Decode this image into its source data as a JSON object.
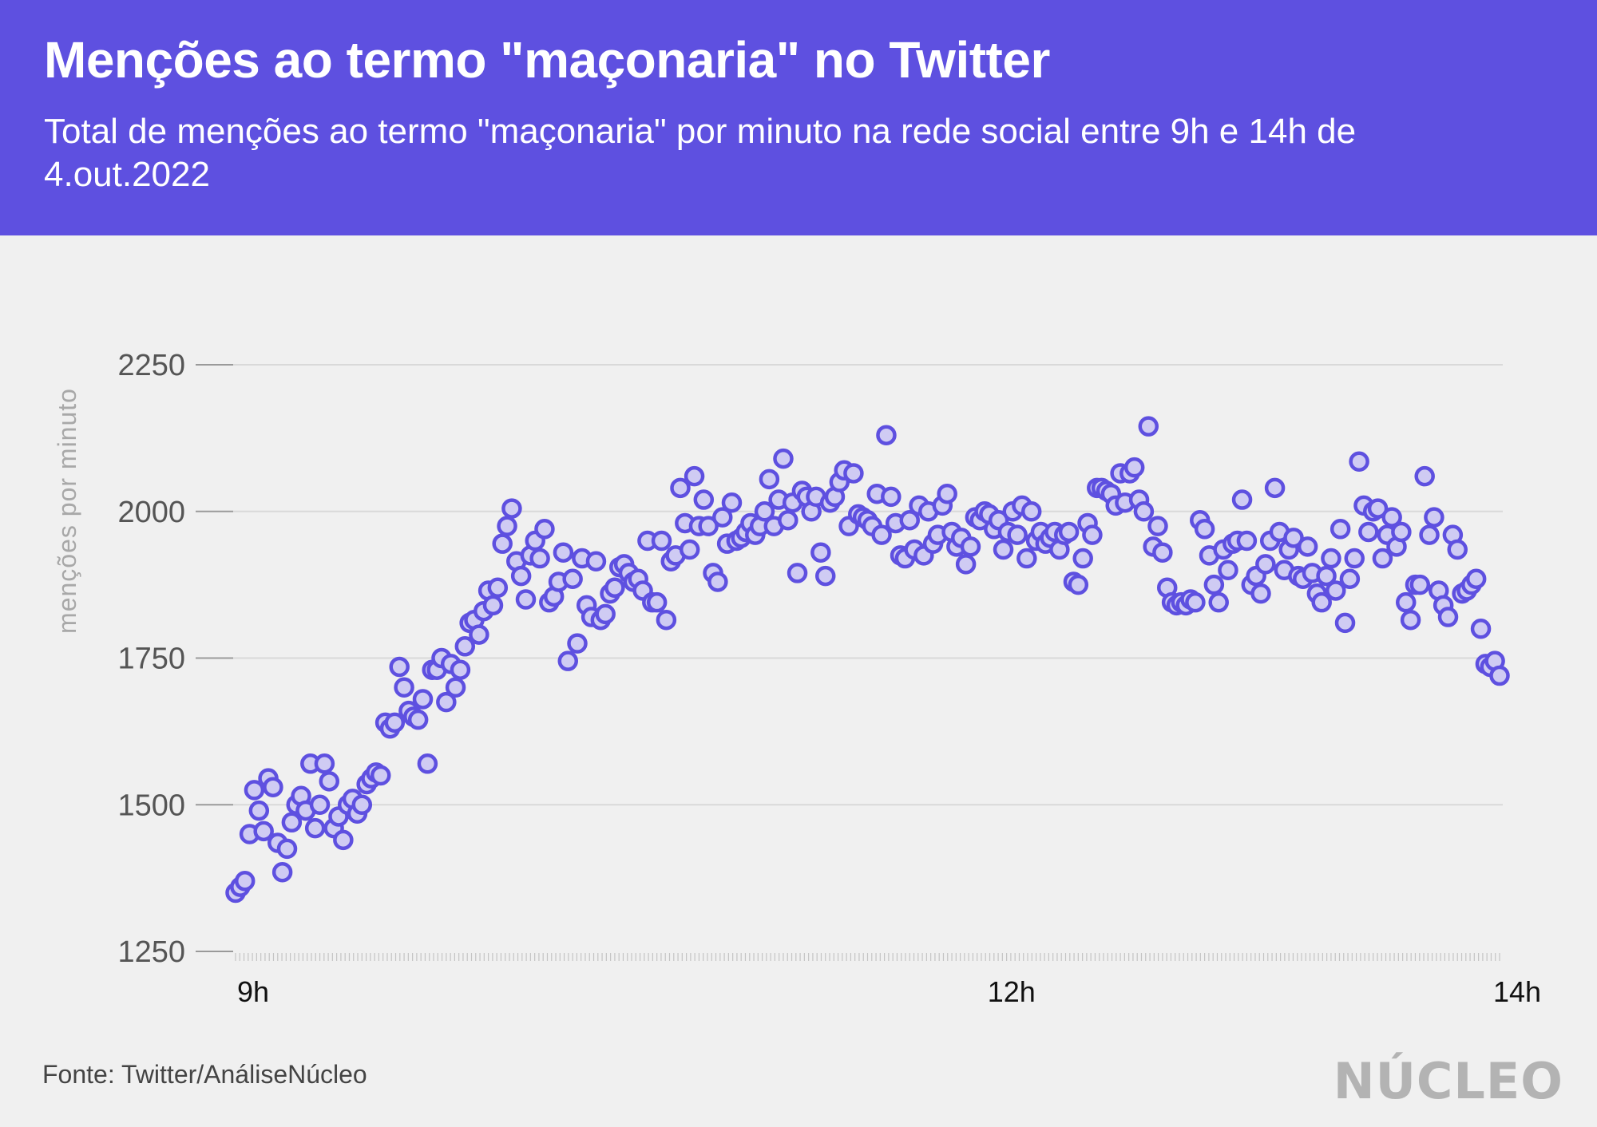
{
  "header": {
    "title": "Menções ao termo \"maçonaria\" no Twitter",
    "subtitle": "Total de menções ao termo \"maçonaria\" por minuto na rede social entre 9h e 14h de 4.out.2022"
  },
  "footer": {
    "source": "Fonte: Twitter/AnáliseNúcleo",
    "logo": "NÚCLEO"
  },
  "colors": {
    "header_bg": "#5e50e0",
    "point_stroke": "#5e50e0",
    "point_fill": "#cfcbf3",
    "background": "#f0f0f0"
  },
  "chart_data": {
    "type": "scatter",
    "title": "Menções ao termo \"maçonaria\" no Twitter",
    "ylabel": "menções por minuto",
    "xlabel": "",
    "ylim": [
      1250,
      2250
    ],
    "yticks": [
      1250,
      1500,
      1750,
      2000,
      2250
    ],
    "xticks": [
      {
        "label": "9h",
        "minute": 0
      },
      {
        "label": "12h",
        "minute": 180
      },
      {
        "label": "14h",
        "minute": 300
      }
    ],
    "grid": true,
    "series": [
      {
        "values": [
          1350,
          1360,
          1370,
          1450,
          1525,
          1490,
          1455,
          1545,
          1530,
          1435,
          1385,
          1425,
          1470,
          1500,
          1515,
          1490,
          1570,
          1460,
          1500,
          1570,
          1540,
          1460,
          1480,
          1440,
          1500,
          1510,
          1485,
          1500,
          1535,
          1545,
          1555,
          1550,
          1640,
          1630,
          1640,
          1735,
          1700,
          1660,
          1650,
          1645,
          1680,
          1570,
          1730,
          1730,
          1750,
          1675,
          1740,
          1700,
          1730,
          1770,
          1810,
          1815,
          1790,
          1830,
          1865,
          1840,
          1870,
          1945,
          1975,
          2005,
          1915,
          1890,
          1850,
          1925,
          1950,
          1920,
          1970,
          1845,
          1855,
          1880,
          1930,
          1745,
          1885,
          1775,
          1920,
          1840,
          1820,
          1915,
          1815,
          1825,
          1860,
          1870,
          1905,
          1910,
          1895,
          1880,
          1885,
          1865,
          1950,
          1845,
          1845,
          1950,
          1815,
          1915,
          1925,
          2040,
          1980,
          1935,
          2060,
          1975,
          2020,
          1975,
          1895,
          1880,
          1990,
          1945,
          2015,
          1950,
          1955,
          1965,
          1980,
          1960,
          1975,
          2000,
          2055,
          1975,
          2020,
          2090,
          1985,
          2015,
          1895,
          2035,
          2025,
          2000,
          2025,
          1930,
          1890,
          2015,
          2025,
          2050,
          2070,
          1975,
          2065,
          1995,
          1990,
          1985,
          1975,
          2030,
          1960,
          2130,
          2025,
          1980,
          1925,
          1920,
          1985,
          1935,
          2010,
          1925,
          2000,
          1945,
          1960,
          2010,
          2030,
          1965,
          1940,
          1955,
          1910,
          1940,
          1990,
          1985,
          2000,
          1995,
          1970,
          1985,
          1935,
          1965,
          2000,
          1960,
          2010,
          1920,
          2000,
          1950,
          1965,
          1945,
          1955,
          1965,
          1935,
          1960,
          1965,
          1880,
          1875,
          1920,
          1980,
          1960,
          2040,
          2040,
          2035,
          2030,
          2010,
          2065,
          2015,
          2065,
          2075,
          2020,
          2000,
          2145,
          1940,
          1975,
          1930,
          1870,
          1845,
          1840,
          1845,
          1840,
          1850,
          1845,
          1985,
          1970,
          1925,
          1875,
          1845,
          1935,
          1900,
          1945,
          1950,
          2020,
          1950,
          1875,
          1890,
          1860,
          1910,
          1950,
          2040,
          1965,
          1900,
          1935,
          1955,
          1890,
          1885,
          1940,
          1895,
          1860,
          1845,
          1890,
          1920,
          1865,
          1970,
          1810,
          1885,
          1920,
          2085,
          2010,
          1965,
          2000,
          2005,
          1920,
          1960,
          1990,
          1940,
          1965,
          1845,
          1815,
          1875,
          1875,
          2060,
          1960,
          1990,
          1865,
          1840,
          1820,
          1960,
          1935,
          1860,
          1865,
          1875,
          1885,
          1800,
          1740,
          1735,
          1745,
          1720
        ]
      }
    ]
  }
}
